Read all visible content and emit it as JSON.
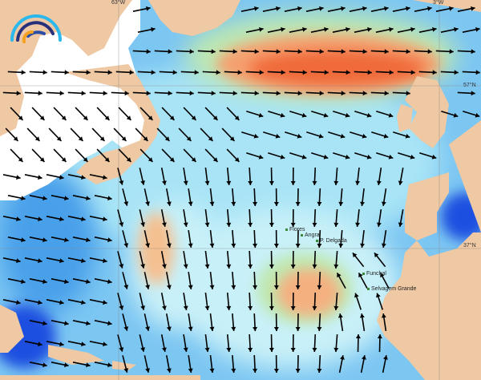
{
  "map": {
    "type": "wave/wind direction field, North Atlantic",
    "colors": {
      "ocean_low": "#1f4fe0",
      "ocean_mid": "#6cc0f2",
      "ocean_light": "#c8f0f8",
      "green": "#bfe8b0",
      "orange": "#f5a070",
      "red": "#f06a3a",
      "land": "#efc9a3",
      "ice": "#ffffff",
      "arrow": "#000000"
    },
    "grid_labels": {
      "lon_left": "63°W",
      "lon_right": "3°W",
      "lat_upper": "57°N",
      "lat_lower": "37°N"
    },
    "places": [
      "Flores",
      "Angra",
      "P. Delgada",
      "Funchal",
      "Selvagem Grande"
    ],
    "logo_icon": "rainbow-waves-logo"
  }
}
